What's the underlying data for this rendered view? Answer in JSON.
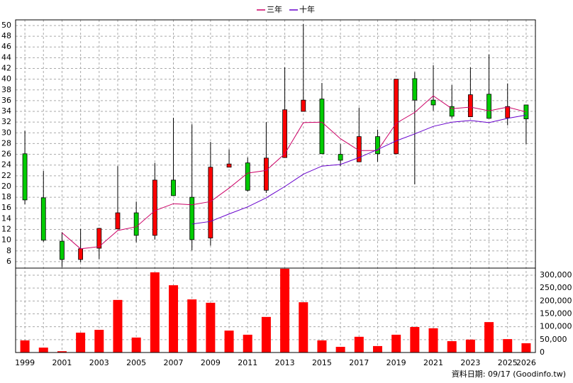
{
  "chart_data": [
    {
      "type": "candlestick",
      "categories": [
        "1999",
        null,
        "2001",
        null,
        "2003",
        null,
        "2005",
        null,
        "2007",
        null,
        "2009",
        null,
        "2011",
        null,
        "2013",
        null,
        "2015",
        null,
        "2017",
        null,
        "2019",
        null,
        "2021",
        null,
        "2023",
        null,
        "2025",
        "2026"
      ],
      "open": [
        26.1,
        17.9,
        9.8,
        6.4,
        8.5,
        12.1,
        15.1,
        10.9,
        21.2,
        18.0,
        10.4,
        23.6,
        24.4,
        19.3,
        25.4,
        34.0,
        36.3,
        26.0,
        24.6,
        29.3,
        26.1,
        40.1,
        36.1,
        34.9,
        33.0,
        37.2,
        32.8,
        35.2
      ],
      "high": [
        30.4,
        22.9,
        11.5,
        12.1,
        12.3,
        23.8,
        17.2,
        24.4,
        32.8,
        31.6,
        28.3,
        26.9,
        25.4,
        32.0,
        42.2,
        50.3,
        39.3,
        27.9,
        34.7,
        30.6,
        40.0,
        41.3,
        42.6,
        38.9,
        42.2,
        44.6,
        39.2,
        35.2
      ],
      "low": [
        16.7,
        9.7,
        5.0,
        5.9,
        6.5,
        12.1,
        9.6,
        10.1,
        18.3,
        8.1,
        9.0,
        23.6,
        19.1,
        18.8,
        25.4,
        34.0,
        26.1,
        23.8,
        24.6,
        24.6,
        26.0,
        20.4,
        34.1,
        32.7,
        33.0,
        32.7,
        31.4,
        27.9
      ],
      "close": [
        17.5,
        10.0,
        6.4,
        8.4,
        12.2,
        15.1,
        10.9,
        21.2,
        18.3,
        10.1,
        23.6,
        24.2,
        19.3,
        25.3,
        34.3,
        36.1,
        26.1,
        24.9,
        29.3,
        26.1,
        40.0,
        36.1,
        35.2,
        33.1,
        37.1,
        32.7,
        34.9,
        32.6
      ],
      "up_color": "#ff0000",
      "down_color": "#00cc00",
      "series": [
        {
          "name": "三年",
          "color": "#cc0066",
          "values": [
            null,
            null,
            11.4,
            8.4,
            8.8,
            11.8,
            12.5,
            15.5,
            16.8,
            16.6,
            17.2,
            19.7,
            22.5,
            23.0,
            26.1,
            31.9,
            32.0,
            28.9,
            26.7,
            26.7,
            31.8,
            33.8,
            36.9,
            34.5,
            34.8,
            34.1,
            34.8,
            33.9
          ]
        },
        {
          "name": "十年",
          "color": "#6600cc",
          "values": [
            null,
            null,
            null,
            null,
            null,
            null,
            null,
            null,
            null,
            13.0,
            13.5,
            14.9,
            16.2,
            17.9,
            20.0,
            22.3,
            23.8,
            24.1,
            25.4,
            26.9,
            28.5,
            29.8,
            31.2,
            32.0,
            32.3,
            31.9,
            32.7,
            33.3
          ]
        }
      ],
      "ylim": [
        4.8,
        51.05
      ],
      "yticks": [
        6,
        8,
        10,
        12,
        14,
        16,
        18,
        20,
        22,
        24,
        26,
        28,
        30,
        32,
        34,
        36,
        38,
        40,
        42,
        44,
        46,
        48,
        50
      ],
      "grid": true
    },
    {
      "type": "bar",
      "values": [
        47000,
        19000,
        5000,
        77000,
        88000,
        204000,
        58000,
        311000,
        261000,
        206000,
        193000,
        85000,
        69000,
        138000,
        325000,
        195000,
        47000,
        22000,
        61000,
        25000,
        69000,
        99000,
        94000,
        44000,
        50000,
        118000,
        52000,
        36000
      ],
      "color": "#ff0000",
      "y2lim": [
        0,
        327500
      ],
      "y2ticks": [
        0,
        {
          "value": 50000,
          "label": "50,000"
        },
        {
          "value": 100000,
          "label": "100,000"
        },
        {
          "value": 150000,
          "label": "150,000"
        },
        {
          "value": 200000,
          "label": "200,000"
        },
        {
          "value": 250000,
          "label": "250,000"
        },
        {
          "value": 300000,
          "label": "300,000"
        }
      ],
      "grid": true
    }
  ],
  "footnote": "資料日期: 09/17 (Goodinfo.tw)"
}
